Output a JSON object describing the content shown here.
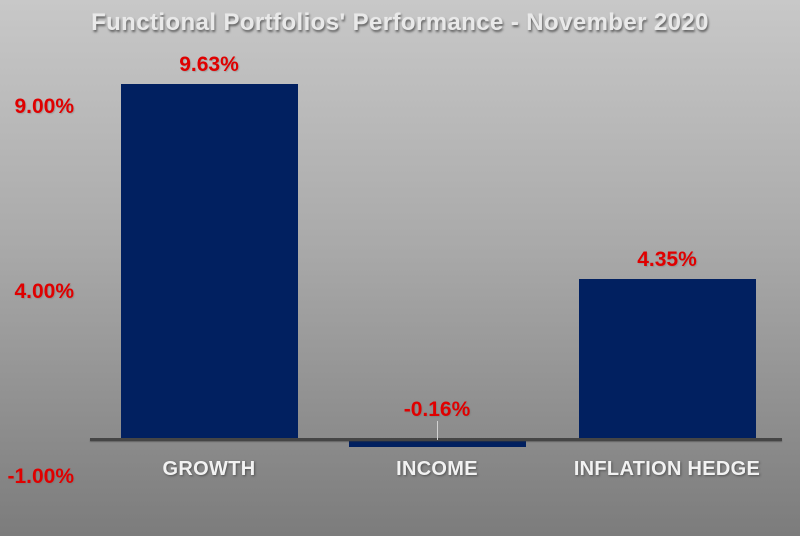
{
  "chart_data": {
    "type": "bar",
    "title": "Functional Portfolios' Performance - November 2020",
    "categories": [
      "GROWTH",
      "INCOME",
      "INFLATION HEDGE"
    ],
    "values": [
      9.63,
      -0.16,
      4.35
    ],
    "data_labels": [
      "9.63%",
      "-0.16%",
      "4.35%"
    ],
    "y_ticks": [
      {
        "label": "9.00%",
        "value": 9.0
      },
      {
        "label": "4.00%",
        "value": 4.0
      },
      {
        "label": "-1.00%",
        "value": -1.0
      }
    ],
    "ylim": [
      -1.0,
      10.0
    ],
    "xlabel": "",
    "ylabel": "",
    "grid": false,
    "legend": "none",
    "colors": {
      "bar": "#012060",
      "data_label": "#e00000",
      "tick_label": "#e00000",
      "category_label": "#f2f2f2",
      "title": "#e9e9e9",
      "axis_line": "#454545",
      "background_top": "#c8c8c8",
      "background_bottom": "#7c7c7c"
    }
  }
}
